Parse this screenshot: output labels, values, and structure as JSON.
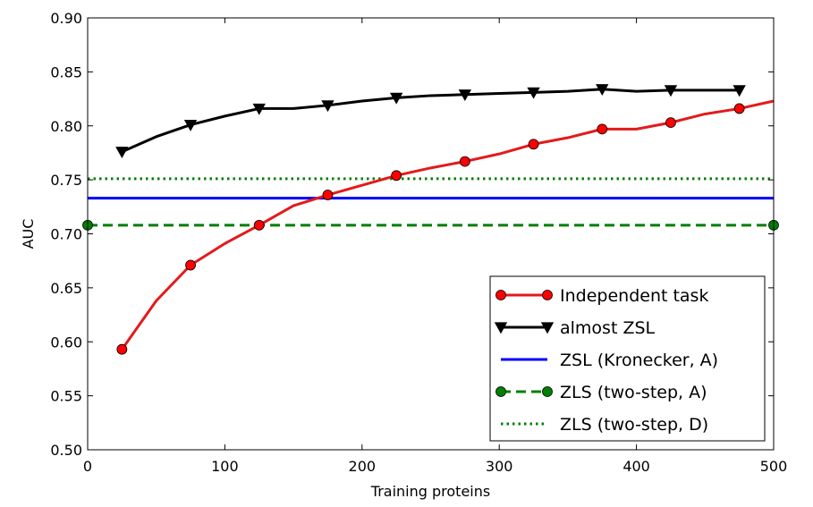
{
  "chart_data": {
    "type": "line",
    "xlabel": "Training proteins",
    "ylabel": "AUC",
    "xlim": [
      0,
      500
    ],
    "ylim": [
      0.5,
      0.9
    ],
    "xticks": [
      0,
      100,
      200,
      300,
      400,
      500
    ],
    "yticks": [
      0.5,
      0.55,
      0.6,
      0.65,
      0.7,
      0.75,
      0.8,
      0.85,
      0.9
    ],
    "xtick_labels": [
      "0",
      "100",
      "200",
      "300",
      "400",
      "500"
    ],
    "ytick_labels": [
      "0.50",
      "0.55",
      "0.60",
      "0.65",
      "0.70",
      "0.75",
      "0.80",
      "0.85",
      "0.90"
    ],
    "grid": false,
    "legend_position": "lower-right",
    "series": [
      {
        "name": "Independent task",
        "color": "#e31a1c",
        "line_style": "solid",
        "marker": "circle",
        "marker_color": "#ff0000",
        "x": [
          25,
          50,
          75,
          100,
          125,
          150,
          175,
          200,
          225,
          250,
          275,
          300,
          325,
          350,
          375,
          400,
          425,
          450,
          475,
          500
        ],
        "y": [
          0.593,
          0.638,
          0.671,
          0.691,
          0.708,
          0.726,
          0.736,
          0.745,
          0.754,
          0.761,
          0.767,
          0.774,
          0.783,
          0.789,
          0.797,
          0.797,
          0.803,
          0.811,
          0.816,
          0.823
        ],
        "marker_x": [
          25,
          75,
          125,
          175,
          225,
          275,
          325,
          375,
          425,
          475
        ]
      },
      {
        "name": "almost ZSL",
        "color": "#000000",
        "line_style": "solid",
        "marker": "triangle-down",
        "marker_color": "#000000",
        "x": [
          25,
          50,
          75,
          100,
          125,
          150,
          175,
          200,
          225,
          250,
          275,
          300,
          325,
          350,
          375,
          400,
          425,
          450,
          475
        ],
        "y": [
          0.776,
          0.79,
          0.801,
          0.809,
          0.816,
          0.816,
          0.819,
          0.823,
          0.826,
          0.828,
          0.829,
          0.83,
          0.831,
          0.832,
          0.834,
          0.832,
          0.833,
          0.833,
          0.833
        ],
        "marker_x": [
          25,
          75,
          125,
          175,
          225,
          275,
          325,
          375,
          425,
          475
        ]
      },
      {
        "name": "ZSL (Kronecker, A)",
        "color": "#0000ff",
        "line_style": "solid",
        "marker": "none",
        "x": [
          0,
          500
        ],
        "y": [
          0.733,
          0.733
        ]
      },
      {
        "name": "ZLS (two-step, A)",
        "color": "#007f00",
        "line_style": "dashed",
        "marker": "circle",
        "marker_color": "#007f00",
        "x": [
          0,
          500
        ],
        "y": [
          0.708,
          0.708
        ],
        "marker_x": [
          0,
          500
        ]
      },
      {
        "name": "ZLS (two-step, D)",
        "color": "#007f00",
        "line_style": "dotted",
        "marker": "none",
        "x": [
          0,
          500
        ],
        "y": [
          0.751,
          0.751
        ]
      }
    ]
  }
}
